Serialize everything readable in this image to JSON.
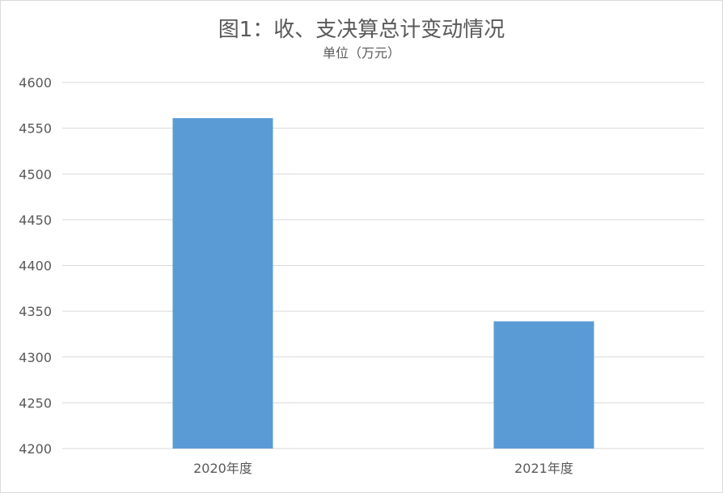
{
  "chart_data": {
    "type": "bar",
    "title": "图1：收、支决算总计变动情况",
    "subtitle": "单位（万元）",
    "categories": [
      "2020年度",
      "2021年度"
    ],
    "values": [
      4561,
      4339
    ],
    "ylim": [
      4200,
      4600
    ],
    "yticks": [
      4200,
      4250,
      4300,
      4350,
      4400,
      4450,
      4500,
      4550,
      4600
    ],
    "grid": true,
    "legend": "none",
    "bar_color": "#5b9bd5",
    "grid_color": "#d9d9d9",
    "text_color": "#595959"
  }
}
